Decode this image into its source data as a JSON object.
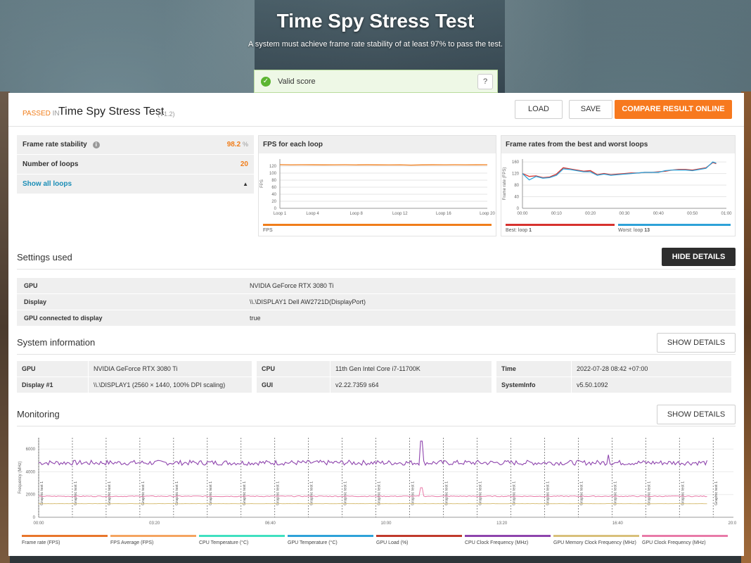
{
  "hero": {
    "title": "Time Spy Stress Test",
    "subtitle": "A system must achieve frame rate stability of at least 97% to pass the test.",
    "valid_label": "Valid score",
    "help": "?"
  },
  "header": {
    "passed": "PASSED",
    "in": "IN",
    "title": "Time Spy Stress Test",
    "version": "(V1.2)",
    "load": "LOAD",
    "save": "SAVE",
    "compare": "COMPARE RESULT ONLINE"
  },
  "stats": {
    "stability_label": "Frame rate stability",
    "stability_value": "98.2",
    "stability_unit": "%",
    "loops_label": "Number of loops",
    "loops_value": "20",
    "show_loops": "Show all loops"
  },
  "fps_chart": {
    "title": "FPS for each loop",
    "legend": "FPS",
    "color": "#f07d1a"
  },
  "best_worst_chart": {
    "title": "Frame rates from the best and worst loops",
    "best_legend": "Best: loop",
    "best_loop": "1",
    "worst_legend": "Worst: loop",
    "worst_loop": "13",
    "best_color": "#d7322e",
    "worst_color": "#2ea2d8"
  },
  "chart_data": [
    {
      "type": "line",
      "title": "FPS for each loop",
      "xlabel": "",
      "ylabel": "FPS",
      "ylim": [
        0,
        140
      ],
      "yticks": [
        0,
        20,
        40,
        60,
        80,
        100,
        120
      ],
      "x_tick_labels": [
        "Loop 1",
        "Loop 4",
        "Loop 8",
        "Loop 12",
        "Loop 16",
        "Loop 20"
      ],
      "x": [
        1,
        2,
        3,
        4,
        5,
        6,
        7,
        8,
        9,
        10,
        11,
        12,
        13,
        14,
        15,
        16,
        17,
        18,
        19,
        20
      ],
      "series": [
        {
          "name": "FPS",
          "values": [
            124,
            123.5,
            123.8,
            123.6,
            123.4,
            123.5,
            123.7,
            123.3,
            123.6,
            123.4,
            123.2,
            123.5,
            122.8,
            123.4,
            123.6,
            123.5,
            123.7,
            123.5,
            123.6,
            123.8
          ]
        }
      ]
    },
    {
      "type": "line",
      "title": "Frame rates from the best and worst loops",
      "ylabel": "Frame rate (FPS)",
      "ylim": [
        0,
        170
      ],
      "yticks": [
        0,
        40,
        80,
        120,
        160
      ],
      "x_tick_labels": [
        "00:00",
        "00:10",
        "00:20",
        "00:30",
        "00:40",
        "00:50",
        "01:00"
      ],
      "x": [
        0,
        2,
        4,
        6,
        8,
        10,
        12,
        14,
        16,
        18,
        20,
        22,
        24,
        26,
        28,
        30,
        32,
        34,
        36,
        38,
        40,
        42,
        44,
        46,
        48,
        50,
        52,
        54,
        56,
        57
      ],
      "series": [
        {
          "name": "Best: loop 1",
          "values": [
            120,
            110,
            112,
            106,
            108,
            118,
            140,
            136,
            132,
            128,
            130,
            116,
            120,
            116,
            118,
            120,
            122,
            122,
            124,
            124,
            126,
            128,
            132,
            134,
            134,
            132,
            136,
            140,
            158,
            154
          ]
        },
        {
          "name": "Worst: loop 13",
          "values": [
            120,
            98,
            110,
            104,
            106,
            114,
            136,
            134,
            130,
            126,
            126,
            114,
            118,
            114,
            116,
            118,
            120,
            122,
            124,
            124,
            124,
            130,
            132,
            132,
            132,
            130,
            134,
            138,
            160,
            156
          ]
        }
      ]
    },
    {
      "type": "line",
      "title": "Monitoring",
      "ylabel": "Frequency (MHz)",
      "ylim": [
        0,
        7000
      ],
      "yticks": [
        0,
        2000,
        4000,
        6000
      ],
      "x_tick_labels": [
        "00:00",
        "03:20",
        "06:40",
        "10:00",
        "13:20",
        "16:40",
        "20:00"
      ],
      "markers": "Graphic test 1",
      "series": [
        {
          "name": "GPU Clock Frequency (MHz) / CPU Clock",
          "value": 4800
        },
        {
          "name": "GPU Memory Clock Frequency (MHz)",
          "value": 1850
        },
        {
          "name": "GPU Clock Frequency (MHz)",
          "value": 1200
        }
      ]
    }
  ],
  "settings": {
    "title": "Settings used",
    "hide_details": "HIDE DETAILS",
    "rows": [
      {
        "k": "GPU",
        "v": "NVIDIA GeForce RTX 3080 Ti"
      },
      {
        "k": "Display",
        "v": "\\\\.\\DISPLAY1 Dell AW2721D(DisplayPort)"
      },
      {
        "k": "GPU connected to display",
        "v": "true"
      }
    ]
  },
  "system": {
    "title": "System information",
    "show_details": "SHOW DETAILS",
    "col1": [
      {
        "k": "GPU",
        "v": "NVIDIA GeForce RTX 3080 Ti"
      },
      {
        "k": "Display #1",
        "v": "\\\\.\\DISPLAY1 (2560 × 1440, 100% DPI scaling)"
      }
    ],
    "col2": [
      {
        "k": "CPU",
        "v": "11th Gen Intel Core i7-11700K"
      },
      {
        "k": "GUI",
        "v": "v2.22.7359 s64"
      }
    ],
    "col3": [
      {
        "k": "Time",
        "v": "2022-07-28 08:42 +07:00"
      },
      {
        "k": "SystemInfo",
        "v": "v5.50.1092"
      }
    ]
  },
  "monitoring": {
    "title": "Monitoring",
    "show_details": "SHOW DETAILS",
    "ylabel": "Frequency (MHz)",
    "marker_label": "Graphic test 1",
    "legend": [
      {
        "name": "Frame rate (FPS)",
        "color": "#e8762c"
      },
      {
        "name": "FPS Average (FPS)",
        "color": "#f4a460"
      },
      {
        "name": "CPU Temperature (°C)",
        "color": "#3fe0c0"
      },
      {
        "name": "GPU Temperature (°C)",
        "color": "#2ea2d8"
      },
      {
        "name": "GPU Load (%)",
        "color": "#c0392b"
      },
      {
        "name": "CPU Clock Frequency (MHz)",
        "color": "#8e44ad"
      },
      {
        "name": "GPU Memory Clock Frequency (MHz)",
        "color": "#d8c07a"
      },
      {
        "name": "GPU Clock Frequency (MHz)",
        "color": "#e87aa8"
      }
    ]
  }
}
